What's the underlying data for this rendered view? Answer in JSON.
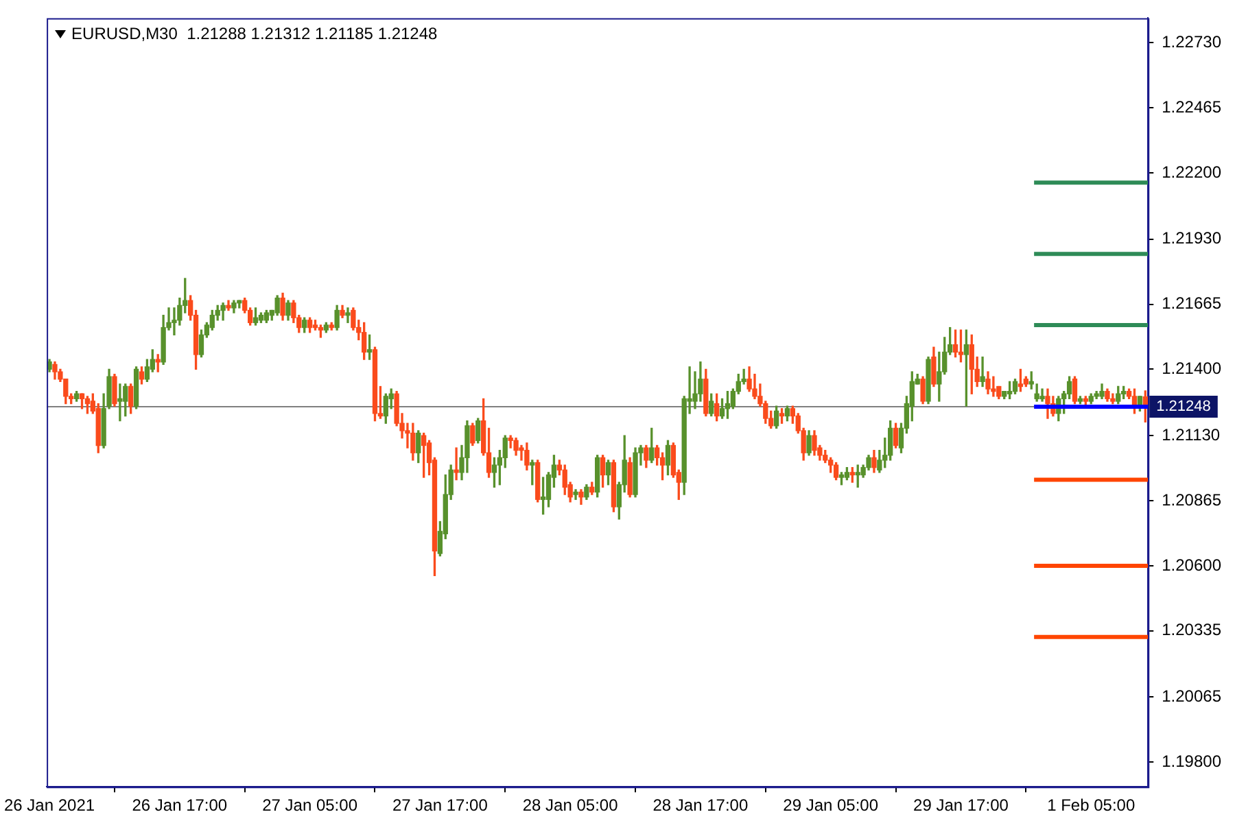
{
  "chart_data": {
    "type": "candlestick",
    "title": "EURUSD,M30  1.21288 1.21312 1.21185 1.21248",
    "categories": [
      "26 Jan 2021",
      null,
      null,
      null,
      null,
      null,
      null,
      null,
      null,
      null,
      null,
      null,
      null,
      null,
      null,
      null,
      null,
      null,
      null,
      null,
      null,
      null,
      null,
      null,
      "26 Jan 17:00",
      null,
      null,
      null,
      null,
      null,
      null,
      null,
      null,
      null,
      null,
      null,
      null,
      null,
      null,
      null,
      null,
      null,
      null,
      null,
      null,
      null,
      null,
      null,
      "27 Jan 05:00",
      null,
      null,
      null,
      null,
      null,
      null,
      null,
      null,
      null,
      null,
      null,
      null,
      null,
      null,
      null,
      null,
      null,
      null,
      null,
      null,
      null,
      null,
      null,
      "27 Jan 17:00",
      null,
      null,
      null,
      null,
      null,
      null,
      null,
      null,
      null,
      null,
      null,
      null,
      null,
      null,
      null,
      null,
      null,
      null,
      null,
      null,
      null,
      null,
      null,
      "28 Jan 05:00",
      null,
      null,
      null,
      null,
      null,
      null,
      null,
      null,
      null,
      null,
      null,
      null,
      null,
      null,
      null,
      null,
      null,
      null,
      null,
      null,
      null,
      null,
      null,
      "28 Jan 17:00",
      null,
      null,
      null,
      null,
      null,
      null,
      null,
      null,
      null,
      null,
      null,
      null,
      null,
      null,
      null,
      null,
      null,
      null,
      null,
      null,
      null,
      null,
      null,
      "29 Jan 05:00",
      null,
      null,
      null,
      null,
      null,
      null,
      null,
      null,
      null,
      null,
      null,
      null,
      null,
      null,
      null,
      null,
      null,
      null,
      null,
      null,
      null,
      null,
      null,
      "29 Jan 17:00",
      null,
      null,
      null,
      null,
      null,
      null,
      null,
      null,
      null,
      null,
      null,
      null,
      null,
      null,
      null,
      null,
      null,
      null,
      null,
      null,
      null,
      null,
      null,
      "1 Feb 05:00",
      null,
      null,
      null,
      null,
      null,
      null,
      null,
      null,
      null,
      null
    ],
    "ohlc": [
      [
        1.214,
        1.2144,
        1.2139,
        1.2143
      ],
      [
        1.2142,
        1.2143,
        1.2136,
        1.2139
      ],
      [
        1.2139,
        1.214,
        1.2135,
        1.2136
      ],
      [
        1.2136,
        1.2136,
        1.2126,
        1.2129
      ],
      [
        1.2129,
        1.213,
        1.2126,
        1.2128
      ],
      [
        1.2128,
        1.2131,
        1.2127,
        1.213
      ],
      [
        1.213,
        1.213,
        1.2124,
        1.2128
      ],
      [
        1.2128,
        1.2129,
        1.2122,
        1.2126
      ],
      [
        1.2127,
        1.213,
        1.2122,
        1.2123
      ],
      [
        1.2124,
        1.2126,
        1.2106,
        1.2109
      ],
      [
        1.2109,
        1.213,
        1.2108,
        1.2124
      ],
      [
        1.2125,
        1.214,
        1.2124,
        1.2137
      ],
      [
        1.2137,
        1.2138,
        1.2125,
        1.2126
      ],
      [
        1.2127,
        1.2134,
        1.2119,
        1.2128
      ],
      [
        1.2127,
        1.2134,
        1.2121,
        1.2133
      ],
      [
        1.2133,
        1.2134,
        1.2122,
        1.2125
      ],
      [
        1.2125,
        1.2141,
        1.2124,
        1.214
      ],
      [
        1.2139,
        1.2141,
        1.2134,
        1.2136
      ],
      [
        1.2136,
        1.2144,
        1.2135,
        1.2141
      ],
      [
        1.214,
        1.2148,
        1.2139,
        1.2144
      ],
      [
        1.2144,
        1.2146,
        1.2139,
        1.2143
      ],
      [
        1.2143,
        1.2162,
        1.2142,
        1.2157
      ],
      [
        1.2157,
        1.2165,
        1.2156,
        1.2159
      ],
      [
        1.2159,
        1.2165,
        1.2154,
        1.216
      ],
      [
        1.216,
        1.2169,
        1.2158,
        1.2166
      ],
      [
        1.2166,
        1.2177,
        1.2163,
        1.2168
      ],
      [
        1.2168,
        1.217,
        1.216,
        1.2162
      ],
      [
        1.2162,
        1.2164,
        1.214,
        1.2146
      ],
      [
        1.2146,
        1.2156,
        1.2145,
        1.2154
      ],
      [
        1.2154,
        1.2159,
        1.2153,
        1.2158
      ],
      [
        1.2157,
        1.2164,
        1.2156,
        1.2162
      ],
      [
        1.2162,
        1.2166,
        1.216,
        1.2164
      ],
      [
        1.2164,
        1.2167,
        1.216,
        1.2166
      ],
      [
        1.2166,
        1.2168,
        1.2164,
        1.2165
      ],
      [
        1.2165,
        1.2168,
        1.2163,
        1.2167
      ],
      [
        1.2167,
        1.2168,
        1.2165,
        1.2168
      ],
      [
        1.2168,
        1.2169,
        1.2163,
        1.2164
      ],
      [
        1.2164,
        1.2165,
        1.2158,
        1.2159
      ],
      [
        1.2159,
        1.2165,
        1.2158,
        1.2161
      ],
      [
        1.216,
        1.2163,
        1.2159,
        1.2162
      ],
      [
        1.216,
        1.2164,
        1.2159,
        1.2163
      ],
      [
        1.2162,
        1.2164,
        1.216,
        1.2164
      ],
      [
        1.2163,
        1.217,
        1.2162,
        1.2169
      ],
      [
        1.2169,
        1.2171,
        1.216,
        1.2162
      ],
      [
        1.2162,
        1.2168,
        1.216,
        1.2167
      ],
      [
        1.2167,
        1.2168,
        1.2159,
        1.2161
      ],
      [
        1.2161,
        1.2162,
        1.2155,
        1.2157
      ],
      [
        1.2157,
        1.2161,
        1.2155,
        1.216
      ],
      [
        1.216,
        1.2161,
        1.2155,
        1.2157
      ],
      [
        1.2158,
        1.216,
        1.2156,
        1.2157
      ],
      [
        1.2157,
        1.2158,
        1.2153,
        1.2156
      ],
      [
        1.2156,
        1.2159,
        1.2155,
        1.2158
      ],
      [
        1.2158,
        1.2159,
        1.2156,
        1.2157
      ],
      [
        1.2157,
        1.2166,
        1.2156,
        1.2164
      ],
      [
        1.2164,
        1.2166,
        1.2161,
        1.2162
      ],
      [
        1.2162,
        1.2165,
        1.2159,
        1.2163
      ],
      [
        1.2164,
        1.2165,
        1.2156,
        1.2157
      ],
      [
        1.2157,
        1.216,
        1.2152,
        1.2155
      ],
      [
        1.2155,
        1.2159,
        1.2144,
        1.2147
      ],
      [
        1.2147,
        1.2154,
        1.2144,
        1.2148
      ],
      [
        1.2148,
        1.2149,
        1.2119,
        1.2122
      ],
      [
        1.2122,
        1.2133,
        1.212,
        1.2121
      ],
      [
        1.2121,
        1.213,
        1.2118,
        1.2129
      ],
      [
        1.2128,
        1.2132,
        1.2124,
        1.213
      ],
      [
        1.213,
        1.2131,
        1.2117,
        1.2118
      ],
      [
        1.2118,
        1.2122,
        1.2112,
        1.2115
      ],
      [
        1.2115,
        1.2118,
        1.2108,
        1.2114
      ],
      [
        1.2114,
        1.2118,
        1.2103,
        1.2106
      ],
      [
        1.2106,
        1.2115,
        1.2102,
        1.2114
      ],
      [
        1.2113,
        1.2114,
        1.2096,
        1.2109
      ],
      [
        1.211,
        1.2111,
        1.2097,
        1.2102
      ],
      [
        1.2103,
        1.2104,
        1.2056,
        1.2066
      ],
      [
        1.2065,
        1.2078,
        1.2064,
        1.2074
      ],
      [
        1.2073,
        1.2097,
        1.2071,
        1.2089
      ],
      [
        1.2089,
        1.2101,
        1.2087,
        1.2099
      ],
      [
        1.2099,
        1.2108,
        1.2095,
        1.2098
      ],
      [
        1.2098,
        1.2109,
        1.2095,
        1.2104
      ],
      [
        1.2104,
        1.2119,
        1.2098,
        1.2117
      ],
      [
        1.2117,
        1.2118,
        1.2109,
        1.211
      ],
      [
        1.2111,
        1.212,
        1.211,
        1.2119
      ],
      [
        1.2119,
        1.2128,
        1.2105,
        1.2106
      ],
      [
        1.2106,
        1.2116,
        1.2096,
        1.2098
      ],
      [
        1.2098,
        1.2104,
        1.2092,
        1.2101
      ],
      [
        1.2101,
        1.2107,
        1.2093,
        1.2104
      ],
      [
        1.2104,
        1.2113,
        1.21,
        1.2112
      ],
      [
        1.2112,
        1.2113,
        1.2108,
        1.2111
      ],
      [
        1.2111,
        1.2112,
        1.2105,
        1.2107
      ],
      [
        1.2108,
        1.2109,
        1.2103,
        1.2107
      ],
      [
        1.2107,
        1.211,
        1.2099,
        1.2101
      ],
      [
        1.2101,
        1.2103,
        1.2093,
        1.2102
      ],
      [
        1.2102,
        1.2103,
        1.2086,
        1.2087
      ],
      [
        1.2087,
        1.2096,
        1.2081,
        1.2088
      ],
      [
        1.2087,
        1.2098,
        1.2084,
        1.2097
      ],
      [
        1.2096,
        1.2105,
        1.2092,
        1.2101
      ],
      [
        1.2101,
        1.2103,
        1.2097,
        1.2099
      ],
      [
        1.2099,
        1.2101,
        1.2089,
        1.2092
      ],
      [
        1.2093,
        1.2094,
        1.2086,
        1.2088
      ],
      [
        1.2089,
        1.2091,
        1.2087,
        1.209
      ],
      [
        1.209,
        1.2091,
        1.2085,
        1.2088
      ],
      [
        1.2088,
        1.2093,
        1.2087,
        1.2092
      ],
      [
        1.2092,
        1.2094,
        1.2089,
        1.209
      ],
      [
        1.209,
        1.2105,
        1.2088,
        1.2104
      ],
      [
        1.2104,
        1.2105,
        1.2092,
        1.2097
      ],
      [
        1.2097,
        1.2103,
        1.2093,
        1.2102
      ],
      [
        1.2102,
        1.2103,
        1.2082,
        1.2084
      ],
      [
        1.2084,
        1.2094,
        1.2079,
        1.2093
      ],
      [
        1.2093,
        1.2113,
        1.209,
        1.2103
      ],
      [
        1.2102,
        1.2104,
        1.2088,
        1.2089
      ],
      [
        1.2089,
        1.2108,
        1.2088,
        1.2106
      ],
      [
        1.2106,
        1.2109,
        1.2101,
        1.2108
      ],
      [
        1.2108,
        1.2109,
        1.21,
        1.2103
      ],
      [
        1.2103,
        1.2116,
        1.2102,
        1.2108
      ],
      [
        1.2108,
        1.2109,
        1.2101,
        1.2104
      ],
      [
        1.2104,
        1.2106,
        1.2095,
        1.2101
      ],
      [
        1.2101,
        1.2111,
        1.2097,
        1.2109
      ],
      [
        1.2109,
        1.211,
        1.2096,
        1.2097
      ],
      [
        1.2098,
        1.2099,
        1.2087,
        1.2094
      ],
      [
        1.2094,
        1.2129,
        1.2089,
        1.2128
      ],
      [
        1.2127,
        1.2141,
        1.2122,
        1.2128
      ],
      [
        1.2127,
        1.2139,
        1.2124,
        1.213
      ],
      [
        1.213,
        1.2143,
        1.2127,
        1.2136
      ],
      [
        1.2136,
        1.214,
        1.2121,
        1.2122
      ],
      [
        1.2122,
        1.213,
        1.2121,
        1.2127
      ],
      [
        1.2126,
        1.213,
        1.2119,
        1.2121
      ],
      [
        1.2121,
        1.2128,
        1.212,
        1.2124
      ],
      [
        1.2124,
        1.2131,
        1.212,
        1.2126
      ],
      [
        1.2125,
        1.2132,
        1.2124,
        1.2131
      ],
      [
        1.2131,
        1.2138,
        1.213,
        1.2135
      ],
      [
        1.2135,
        1.214,
        1.2134,
        1.2136
      ],
      [
        1.2136,
        1.2141,
        1.2131,
        1.2132
      ],
      [
        1.2132,
        1.2138,
        1.2128,
        1.2129
      ],
      [
        1.2129,
        1.2134,
        1.2125,
        1.2126
      ],
      [
        1.2126,
        1.2127,
        1.2118,
        1.212
      ],
      [
        1.212,
        1.2123,
        1.2116,
        1.2117
      ],
      [
        1.2117,
        1.2125,
        1.2116,
        1.2123
      ],
      [
        1.2122,
        1.2124,
        1.2118,
        1.2121
      ],
      [
        1.2121,
        1.2125,
        1.2119,
        1.2124
      ],
      [
        1.2124,
        1.2125,
        1.2118,
        1.2121
      ],
      [
        1.2121,
        1.2122,
        1.2114,
        1.2115
      ],
      [
        1.2115,
        1.2116,
        1.2103,
        1.2106
      ],
      [
        1.2106,
        1.2115,
        1.2105,
        1.2113
      ],
      [
        1.2113,
        1.2115,
        1.2105,
        1.2107
      ],
      [
        1.2108,
        1.2109,
        1.2103,
        1.2105
      ],
      [
        1.2105,
        1.2107,
        1.2102,
        1.2103
      ],
      [
        1.2103,
        1.2104,
        1.2098,
        1.2101
      ],
      [
        1.2101,
        1.2102,
        1.2095,
        1.2096
      ],
      [
        1.2096,
        1.2098,
        1.2093,
        1.2097
      ],
      [
        1.2096,
        1.21,
        1.2095,
        1.2098
      ],
      [
        1.2098,
        1.21,
        1.2094,
        1.2097
      ],
      [
        1.2097,
        1.2101,
        1.2092,
        1.2098
      ],
      [
        1.2097,
        1.2101,
        1.2096,
        1.21
      ],
      [
        1.21,
        1.2105,
        1.2099,
        1.2104
      ],
      [
        1.2104,
        1.2107,
        1.2098,
        1.21
      ],
      [
        1.2099,
        1.2107,
        1.2098,
        1.2103
      ],
      [
        1.2103,
        1.2112,
        1.21,
        1.2105
      ],
      [
        1.2105,
        1.2119,
        1.2103,
        1.2116
      ],
      [
        1.2116,
        1.2118,
        1.2108,
        1.2109
      ],
      [
        1.2108,
        1.2118,
        1.2106,
        1.2116
      ],
      [
        1.2116,
        1.2129,
        1.2114,
        1.2126
      ],
      [
        1.2125,
        1.2139,
        1.2119,
        1.2135
      ],
      [
        1.2134,
        1.2138,
        1.2134,
        1.2136
      ],
      [
        1.2136,
        1.2137,
        1.2126,
        1.2127
      ],
      [
        1.2127,
        1.2145,
        1.2126,
        1.2144
      ],
      [
        1.2145,
        1.2149,
        1.2133,
        1.2134
      ],
      [
        1.2134,
        1.2147,
        1.2127,
        1.2139
      ],
      [
        1.2139,
        1.2153,
        1.2138,
        1.2147
      ],
      [
        1.2147,
        1.2157,
        1.2146,
        1.215
      ],
      [
        1.215,
        1.2156,
        1.2145,
        1.2147
      ],
      [
        1.2147,
        1.2156,
        1.2143,
        1.2146
      ],
      [
        1.2146,
        1.2156,
        1.2125,
        1.215
      ],
      [
        1.215,
        1.2154,
        1.213,
        1.214
      ],
      [
        1.214,
        1.2145,
        1.2133,
        1.2135
      ],
      [
        1.2135,
        1.2145,
        1.2133,
        1.2137
      ],
      [
        1.2136,
        1.2139,
        1.213,
        1.2132
      ],
      [
        1.2132,
        1.2137,
        1.2129,
        1.2131
      ],
      [
        1.2133,
        1.2133,
        1.2128,
        1.2129
      ],
      [
        1.2129,
        1.2131,
        1.2128,
        1.2131
      ],
      [
        1.213,
        1.2135,
        1.2128,
        1.2131
      ],
      [
        1.2131,
        1.2136,
        1.213,
        1.2135
      ],
      [
        1.2134,
        1.214,
        1.2131,
        1.2133
      ],
      [
        1.2136,
        1.2137,
        1.2133,
        1.2134
      ],
      [
        1.2134,
        1.2139,
        1.2132,
        1.2135
      ],
      [
        1.2128,
        1.2134,
        1.2127,
        1.213
      ],
      [
        1.2128,
        1.2132,
        1.2127,
        1.2129
      ],
      [
        1.2129,
        1.2132,
        1.212,
        1.2126
      ],
      [
        1.2126,
        1.2129,
        1.2121,
        1.2122
      ],
      [
        1.2122,
        1.2129,
        1.2119,
        1.2128
      ],
      [
        1.2128,
        1.2131,
        1.2122,
        1.213
      ],
      [
        1.213,
        1.2137,
        1.2128,
        1.2135
      ],
      [
        1.2136,
        1.2137,
        1.2126,
        1.2127
      ],
      [
        1.2127,
        1.2129,
        1.2126,
        1.2128
      ],
      [
        1.2128,
        1.2129,
        1.2125,
        1.2127
      ],
      [
        1.2127,
        1.213,
        1.2126,
        1.2129
      ],
      [
        1.2129,
        1.2131,
        1.2128,
        1.213
      ],
      [
        1.2129,
        1.2134,
        1.2128,
        1.2131
      ],
      [
        1.2131,
        1.2132,
        1.2127,
        1.2128
      ],
      [
        1.2128,
        1.213,
        1.2126,
        1.2127
      ],
      [
        1.2127,
        1.2133,
        1.2126,
        1.213
      ],
      [
        1.213,
        1.2133,
        1.2128,
        1.2131
      ],
      [
        1.2131,
        1.2132,
        1.2128,
        1.2129
      ],
      [
        1.2129,
        1.2132,
        1.2122,
        1.2125
      ],
      [
        1.2125,
        1.2129,
        1.2123,
        1.2129
      ],
      [
        1.21288,
        1.21312,
        1.21185,
        1.21248
      ]
    ],
    "colors": [
      "#58912c",
      "#fa4b1c",
      "#fa4b1c",
      "#fa4b1c",
      "#fa4b1c",
      "#58912c",
      "#fa4b1c",
      "#fa4b1c",
      "#fa4b1c",
      "#fa4b1c",
      "#58912c",
      "#58912c",
      "#fa4b1c",
      "#58912c",
      "#58912c",
      "#fa4b1c",
      "#58912c",
      "#fa4b1c",
      "#58912c",
      "#58912c",
      "#fa4b1c",
      "#58912c",
      "#58912c",
      "#58912c",
      "#58912c",
      "#58912c",
      "#fa4b1c",
      "#fa4b1c",
      "#58912c",
      "#58912c",
      "#58912c",
      "#58912c",
      "#58912c",
      "#fa4b1c",
      "#58912c",
      "#58912c",
      "#fa4b1c",
      "#fa4b1c",
      "#58912c",
      "#58912c",
      "#58912c",
      "#58912c",
      "#58912c",
      "#fa4b1c",
      "#58912c",
      "#fa4b1c",
      "#fa4b1c",
      "#58912c",
      "#fa4b1c",
      "#fa4b1c",
      "#fa4b1c",
      "#58912c",
      "#fa4b1c",
      "#58912c",
      "#fa4b1c",
      "#58912c",
      "#fa4b1c",
      "#fa4b1c",
      "#fa4b1c",
      "#58912c",
      "#fa4b1c",
      "#fa4b1c",
      "#58912c",
      "#58912c",
      "#fa4b1c",
      "#fa4b1c",
      "#fa4b1c",
      "#fa4b1c",
      "#58912c",
      "#fa4b1c",
      "#fa4b1c",
      "#fa4b1c",
      "#58912c",
      "#58912c",
      "#58912c",
      "#fa4b1c",
      "#58912c",
      "#58912c",
      "#fa4b1c",
      "#58912c",
      "#fa4b1c",
      "#fa4b1c",
      "#58912c",
      "#58912c",
      "#58912c",
      "#fa4b1c",
      "#fa4b1c",
      "#fa4b1c",
      "#fa4b1c",
      "#58912c",
      "#fa4b1c",
      "#58912c",
      "#58912c",
      "#58912c",
      "#fa4b1c",
      "#fa4b1c",
      "#fa4b1c",
      "#58912c",
      "#fa4b1c",
      "#58912c",
      "#fa4b1c",
      "#58912c",
      "#fa4b1c",
      "#58912c",
      "#fa4b1c",
      "#58912c",
      "#58912c",
      "#fa4b1c",
      "#58912c",
      "#58912c",
      "#fa4b1c",
      "#58912c",
      "#fa4b1c",
      "#fa4b1c",
      "#58912c",
      "#fa4b1c",
      "#fa4b1c",
      "#58912c",
      "#58912c",
      "#58912c",
      "#58912c",
      "#fa4b1c",
      "#58912c",
      "#fa4b1c",
      "#58912c",
      "#58912c",
      "#58912c",
      "#58912c",
      "#58912c",
      "#fa4b1c",
      "#fa4b1c",
      "#fa4b1c",
      "#fa4b1c",
      "#fa4b1c",
      "#58912c",
      "#fa4b1c",
      "#58912c",
      "#fa4b1c",
      "#fa4b1c",
      "#fa4b1c",
      "#58912c",
      "#fa4b1c",
      "#fa4b1c",
      "#fa4b1c",
      "#fa4b1c",
      "#fa4b1c",
      "#58912c",
      "#58912c",
      "#fa4b1c",
      "#58912c",
      "#58912c",
      "#58912c",
      "#fa4b1c",
      "#58912c",
      "#58912c",
      "#58912c",
      "#fa4b1c",
      "#58912c",
      "#58912c",
      "#58912c",
      "#58912c",
      "#fa4b1c",
      "#58912c",
      "#fa4b1c",
      "#58912c",
      "#58912c",
      "#58912c",
      "#fa4b1c",
      "#fa4b1c",
      "#58912c",
      "#fa4b1c",
      "#fa4b1c",
      "#58912c",
      "#fa4b1c",
      "#fa4b1c",
      "#fa4b1c",
      "#58912c",
      "#58912c",
      "#58912c",
      "#fa4b1c",
      "#fa4b1c",
      "#58912c",
      "#58912c",
      "#58912c",
      "#fa4b1c",
      "#fa4b1c",
      "#58912c",
      "#58912c",
      "#58912c",
      "#fa4b1c",
      "#58912c",
      "#fa4b1c",
      "#58912c",
      "#58912c",
      "#58912c",
      "#fa4b1c",
      "#fa4b1c",
      "#58912c",
      "#58912c",
      "#fa4b1c",
      "#fa4b1c",
      "#58912c",
      "#fa4b1c"
    ],
    "ylim": [
      1.197,
      1.2283
    ],
    "yticks": [
      {
        "value": 1.2273,
        "label": "1.22730"
      },
      {
        "value": 1.22465,
        "label": "1.22465"
      },
      {
        "value": 1.222,
        "label": "1.22200"
      },
      {
        "value": 1.2193,
        "label": "1.21930"
      },
      {
        "value": 1.21665,
        "label": "1.21665"
      },
      {
        "value": 1.214,
        "label": "1.21400"
      },
      {
        "value": 1.2113,
        "label": "1.21130"
      },
      {
        "value": 1.20865,
        "label": "1.20865"
      },
      {
        "value": 1.206,
        "label": "1.20600"
      },
      {
        "value": 1.20335,
        "label": "1.20335"
      },
      {
        "value": 1.20065,
        "label": "1.20065"
      },
      {
        "value": 1.198,
        "label": "1.19800"
      }
    ],
    "ref_lines": [
      {
        "axis": "y",
        "value": 1.21248,
        "label": "1.21248",
        "color": "#808080"
      },
      {
        "axis": "y",
        "value": 1.2216,
        "color": "#2e8b57"
      },
      {
        "axis": "y",
        "value": 1.2187,
        "color": "#2e8b57"
      },
      {
        "axis": "y",
        "value": 1.2158,
        "color": "#2e8b57"
      },
      {
        "axis": "y",
        "value": 1.2095,
        "color": "#ff4500"
      },
      {
        "axis": "y",
        "value": 1.206,
        "color": "#ff4500"
      },
      {
        "axis": "y",
        "value": 1.2031,
        "color": "#ff4500"
      },
      {
        "axis": "y",
        "value": 1.21248,
        "color": "#0000ff"
      }
    ]
  }
}
